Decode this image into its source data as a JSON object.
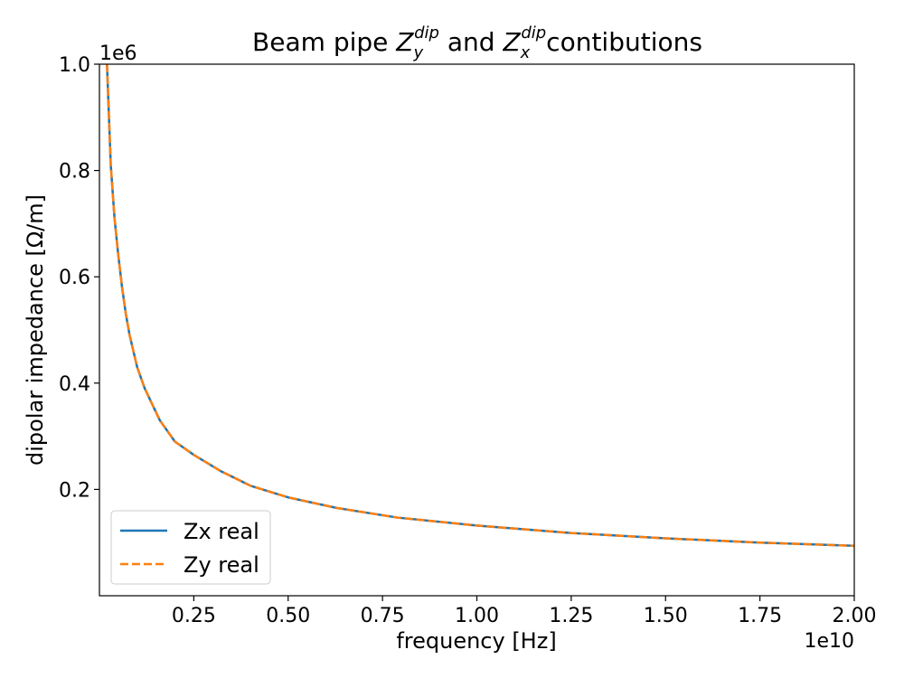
{
  "chart_data": {
    "type": "line",
    "title": {
      "prefix": "Beam pipe ",
      "zy": "Z",
      "zy_sub": "y",
      "zy_sup": "dip",
      "and": " and ",
      "zx": "Z",
      "zx_sub": "x",
      "zx_sup": "dip",
      "suffix": "contibutions"
    },
    "xlabel": "frequency [Hz]",
    "ylabel": "dipolar impedance [Ω/m]",
    "x_offset_text": "1e10",
    "y_offset_text": "1e6",
    "xlim": [
      0.0,
      2.0
    ],
    "ylim": [
      0.0,
      1.0
    ],
    "log_x": false,
    "log_y": false,
    "grid": false,
    "legend_position": "lower-left",
    "x_ticks": [
      0.25,
      0.5,
      0.75,
      1.0,
      1.25,
      1.5,
      1.75,
      2.0
    ],
    "x_tick_labels": [
      "0.25",
      "0.50",
      "0.75",
      "1.00",
      "1.25",
      "1.50",
      "1.75",
      "2.00"
    ],
    "y_ticks": [
      0.2,
      0.4,
      0.6,
      0.8,
      1.0
    ],
    "y_tick_labels": [
      "0.2",
      "0.4",
      "0.6",
      "0.8",
      "1.0"
    ],
    "x": [
      0.02,
      0.03,
      0.04,
      0.05,
      0.06,
      0.07,
      0.08,
      0.1,
      0.12,
      0.16,
      0.2,
      0.25,
      0.32,
      0.4,
      0.5,
      0.63,
      0.79,
      1.0,
      1.25,
      1.5,
      1.75,
      2.0
    ],
    "series": [
      {
        "name": "Zx real",
        "color": "#1f77b4",
        "style": "solid",
        "values": [
          1.0,
          0.81,
          0.71,
          0.64,
          0.58,
          0.53,
          0.49,
          0.43,
          0.39,
          0.33,
          0.29,
          0.265,
          0.235,
          0.207,
          0.185,
          0.165,
          0.147,
          0.132,
          0.118,
          0.108,
          0.1,
          0.094
        ]
      },
      {
        "name": "Zy real",
        "color": "#ff7f0e",
        "style": "dashed",
        "values": [
          1.0,
          0.81,
          0.71,
          0.64,
          0.58,
          0.53,
          0.49,
          0.43,
          0.39,
          0.33,
          0.29,
          0.265,
          0.235,
          0.207,
          0.185,
          0.165,
          0.147,
          0.132,
          0.118,
          0.108,
          0.1,
          0.094
        ]
      }
    ]
  }
}
